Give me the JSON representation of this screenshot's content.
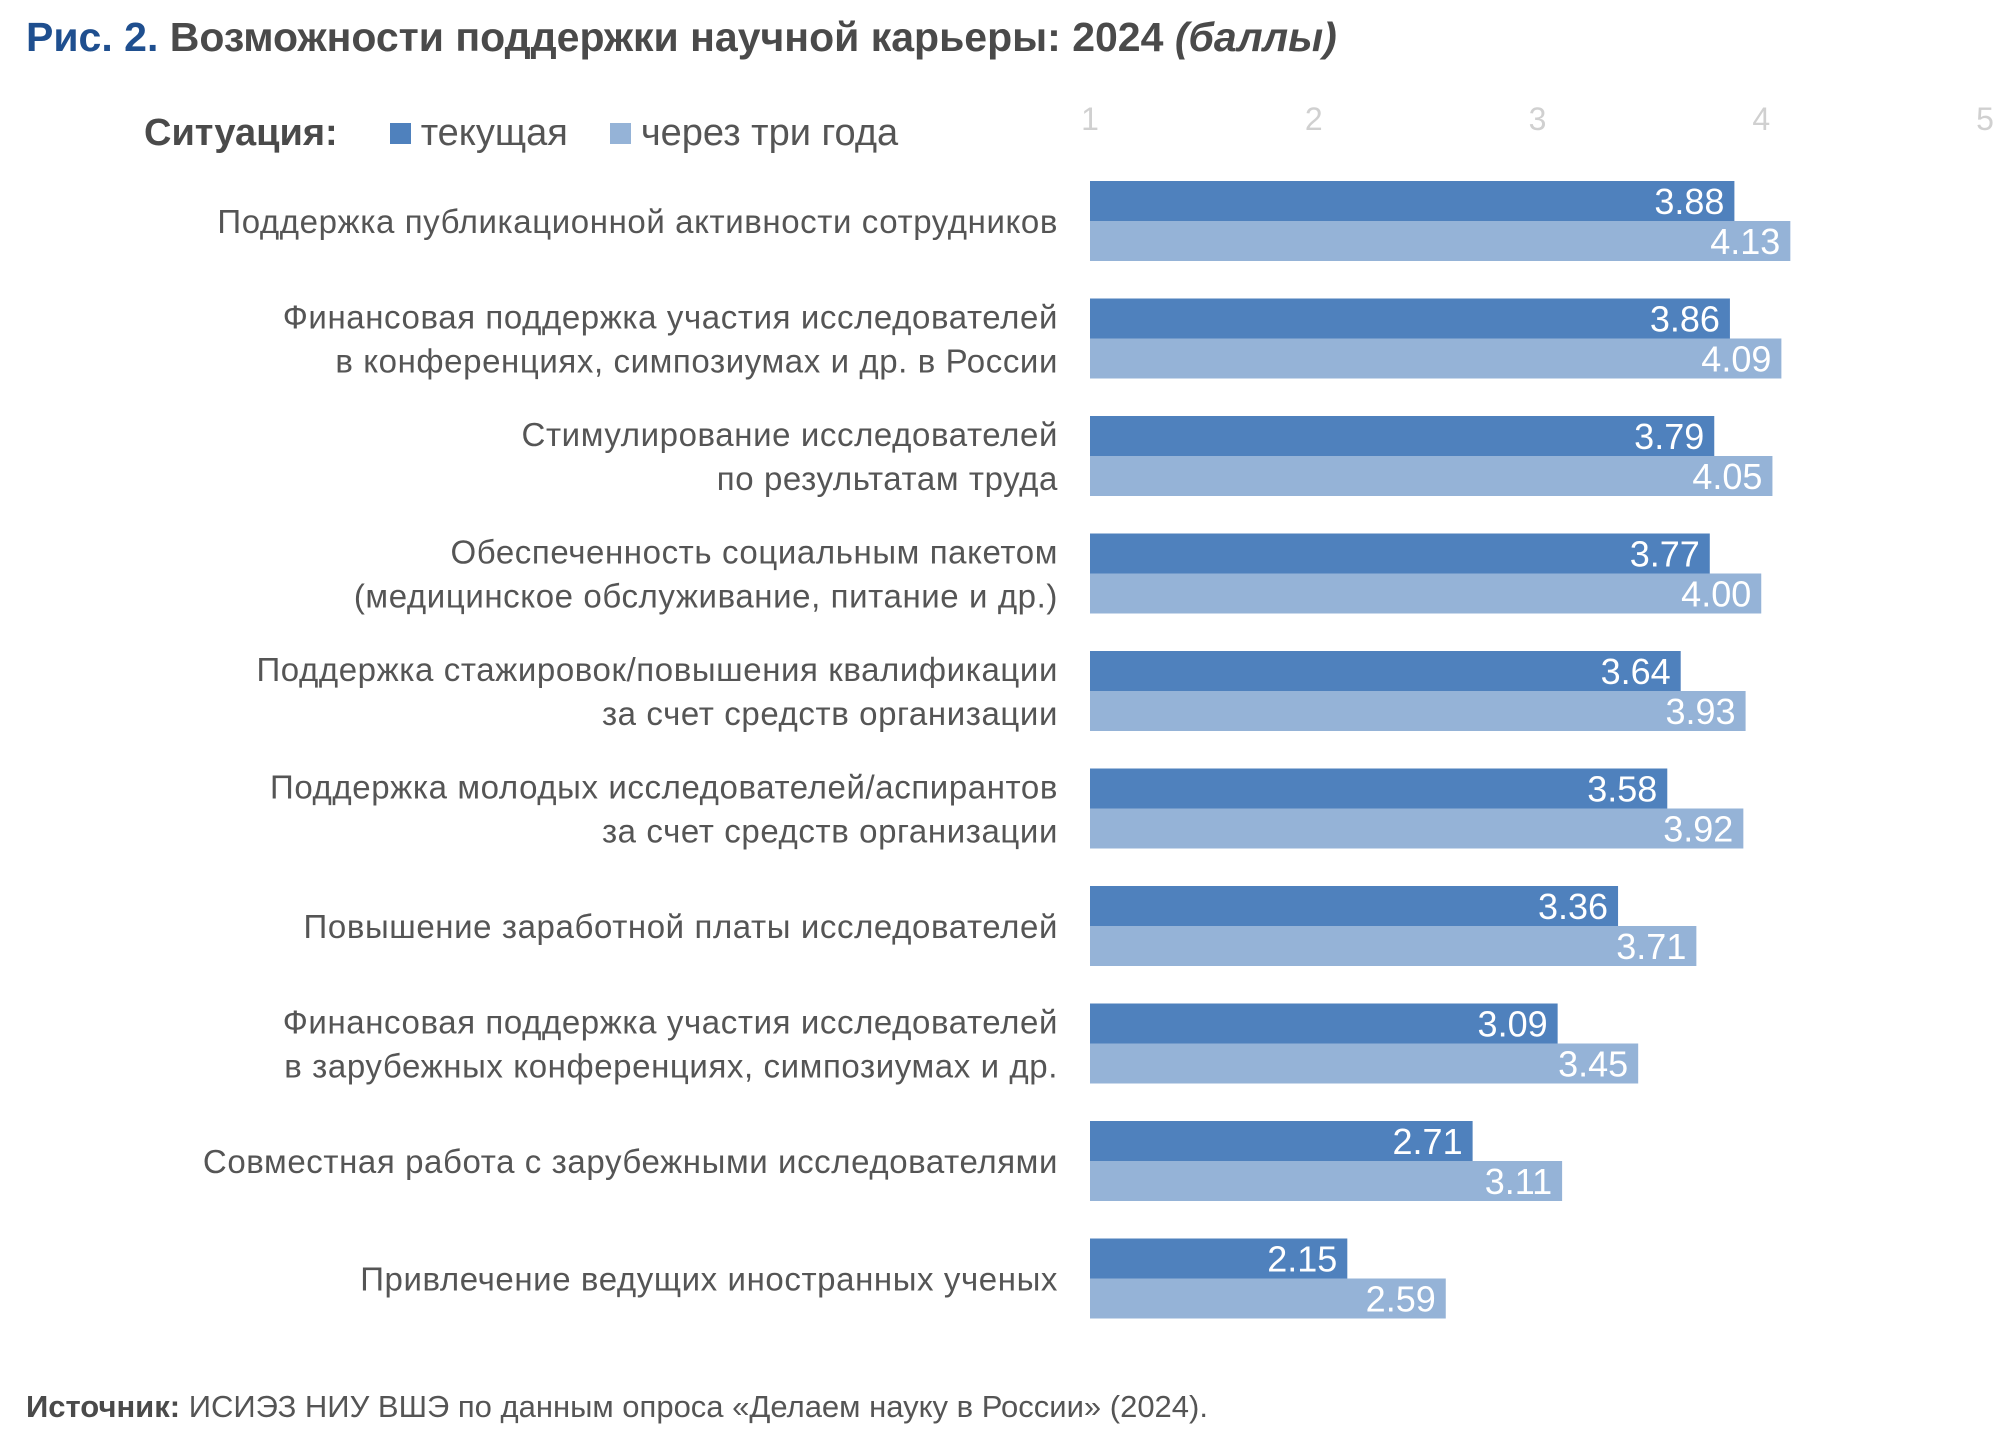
{
  "header": {
    "prefix": "Рис. 2.",
    "title": "Возможности поддержки научной карьеры: 2024",
    "unit": "(баллы)"
  },
  "legend": {
    "title": "Ситуация:",
    "items": [
      "текущая",
      "через три года"
    ]
  },
  "colors": {
    "current": "#4f81bd",
    "future": "#95b3d7",
    "title_prefix": "#1f4f8f",
    "axis_text": "#d0d0d0"
  },
  "source": {
    "label": "Источник:",
    "text": "ИСИЭЗ НИУ ВШЭ по данным опроса «Делаем науку в России» (2024)."
  },
  "chart_data": {
    "type": "bar",
    "orientation": "horizontal",
    "xlim": [
      1,
      5
    ],
    "ticks": [
      "1",
      "2",
      "3",
      "4",
      "5"
    ],
    "grid": false,
    "legend_position": "top",
    "categories": [
      [
        "Поддержка публикационной активности сотрудников"
      ],
      [
        "Финансовая поддержка участия исследователей",
        "в конференциях, симпозиумах и др. в России"
      ],
      [
        "Стимулирование исследователей",
        "по результатам труда"
      ],
      [
        "Обеспеченность социальным пакетом",
        "(медицинское обслуживание, питание и др.)"
      ],
      [
        "Поддержка стажировок/повышения квалификации",
        "за счет средств организации"
      ],
      [
        "Поддержка молодых исследователей/аспирантов",
        "за счет средств организации"
      ],
      [
        "Повышение заработной платы исследователей"
      ],
      [
        "Финансовая поддержка участия исследователей",
        "в зарубежных конференциях, симпозиумах и др."
      ],
      [
        "Совместная работа с зарубежными исследователями"
      ],
      [
        "Привлечение ведущих иностранных ученых"
      ]
    ],
    "series": [
      {
        "name": "текущая",
        "color": "#4f81bd",
        "values": [
          3.88,
          3.86,
          3.79,
          3.77,
          3.64,
          3.58,
          3.36,
          3.09,
          2.71,
          2.15
        ],
        "labels": [
          "3.88",
          "3.86",
          "3.79",
          "3.77",
          "3.64",
          "3.58",
          "3.36",
          "3.09",
          "2.71",
          "2.15"
        ]
      },
      {
        "name": "через три года",
        "color": "#95b3d7",
        "values": [
          4.13,
          4.09,
          4.05,
          4.0,
          3.93,
          3.92,
          3.71,
          3.45,
          3.11,
          2.59
        ],
        "labels": [
          "4.13",
          "4.09",
          "4.05",
          "4.00",
          "3.93",
          "3.92",
          "3.71",
          "3.45",
          "3.11",
          "2.59"
        ]
      }
    ]
  }
}
